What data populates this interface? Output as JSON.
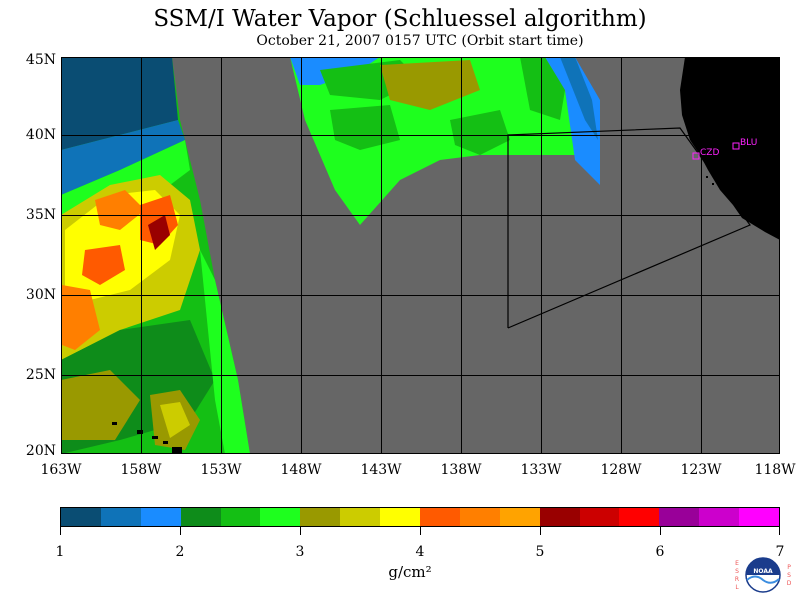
{
  "title": "SSM/I Water Vapor (Schluessel algorithm)",
  "subtitle": "October 21, 2007  0157 UTC  (Orbit start time)",
  "lat_labels": [
    "45N",
    "40N",
    "35N",
    "30N",
    "25N",
    "20N"
  ],
  "lon_labels": [
    "163W",
    "158W",
    "153W",
    "148W",
    "143W",
    "138W",
    "133W",
    "128W",
    "123W",
    "118W"
  ],
  "colorbar": {
    "colors": [
      "#0a4d73",
      "#0f73b8",
      "#1a8cff",
      "#0e8c1a",
      "#14bf14",
      "#1eff1e",
      "#999900",
      "#cccc00",
      "#ffff00",
      "#ff5a00",
      "#ff7f00",
      "#ffa300",
      "#990000",
      "#cc0000",
      "#ff0000",
      "#990099",
      "#cc00cc",
      "#ff00ff"
    ],
    "tick_labels": [
      "1",
      "2",
      "3",
      "4",
      "5",
      "6",
      "7"
    ],
    "units": "g/cm²"
  },
  "stations": [
    {
      "label": "CZD"
    },
    {
      "label": "BLU"
    }
  ],
  "logo": {
    "name": "NOAA",
    "left_letters": "ESRL",
    "right_letters": "PSD"
  },
  "colors": {
    "no_data": "#666666",
    "land": "#000000",
    "station": "#ff22ff"
  }
}
